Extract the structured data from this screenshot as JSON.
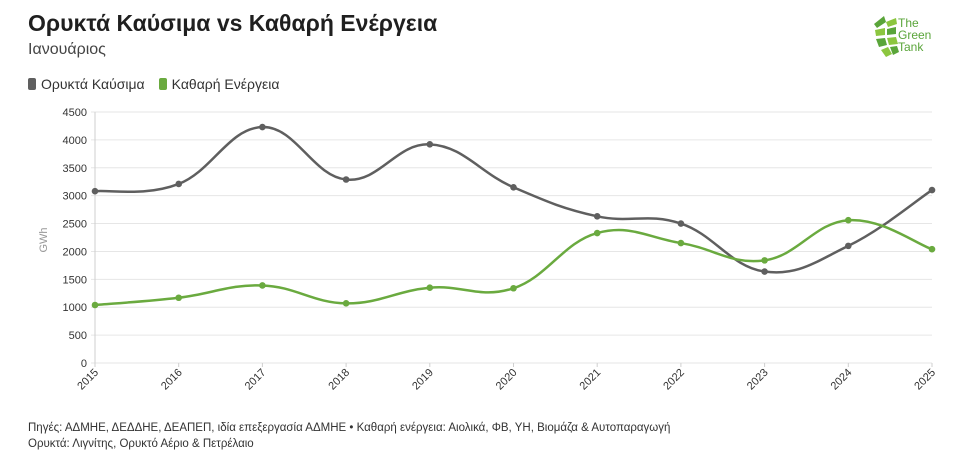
{
  "header": {
    "title": "Ορυκτά Καύσιμα vs Καθαρή Ενέργεια",
    "subtitle": "Ιανουάριος"
  },
  "logo": {
    "line1": "The",
    "line2": "Green",
    "line3": "Tank",
    "color": "#5aa53a"
  },
  "chart_data": {
    "type": "line",
    "x": [
      "2015",
      "2016",
      "2017",
      "2018",
      "2019",
      "2020",
      "2021",
      "2022",
      "2023",
      "2024",
      "2025"
    ],
    "series": [
      {
        "name": "Ορυκτά Καύσιμα",
        "color": "#5f5f5f",
        "values": [
          3080,
          3210,
          4230,
          3290,
          3920,
          3150,
          2630,
          2500,
          1640,
          2100,
          3100
        ]
      },
      {
        "name": "Καθαρή Ενέργεια",
        "color": "#6aaa3f",
        "values": [
          1040,
          1170,
          1390,
          1070,
          1350,
          1340,
          2330,
          2150,
          1840,
          2560,
          2040
        ]
      }
    ],
    "ylabel": "GWh",
    "ylim": [
      0,
      4500
    ],
    "yticks": [
      0,
      500,
      1000,
      1500,
      2000,
      2500,
      3000,
      3500,
      4000,
      4500
    ],
    "grid": true,
    "legend_position": "top-left"
  },
  "footer": {
    "line1": "Πηγές: ΑΔΜΗΕ, ΔΕΔΔΗΕ, ΔΕΑΠΕΠ, ιδία επεξεργασία ΑΔΜΗΕ • Καθαρή ενέργεια: Αιολικά, ΦΒ, ΥΗ, Βιομάζα & Αυτοπαραγωγή",
    "line2": "Ορυκτά: Λιγνίτης, Ορυκτό Αέριο & Πετρέλαιο"
  }
}
